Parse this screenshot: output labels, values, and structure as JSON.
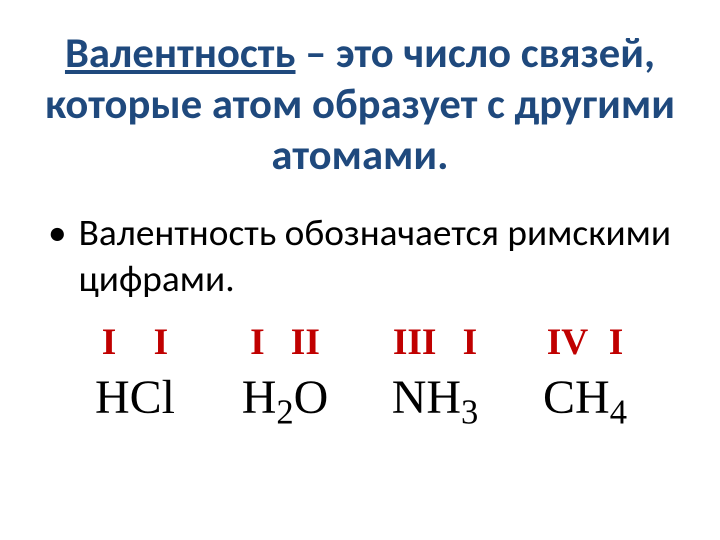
{
  "colors": {
    "title": "#1f497d",
    "valence": "#c00000",
    "body": "#000000",
    "background": "#ffffff"
  },
  "typography": {
    "title_fontsize_pt": 32,
    "body_fontsize_pt": 28,
    "valence_fontsize_pt": 28,
    "formula_fontsize_pt": 36,
    "title_weight": 700,
    "valence_weight": 700,
    "title_font": "Calibri",
    "formula_font": "Times New Roman"
  },
  "title": {
    "term": "Валентность",
    "term_underlined": true,
    "rest": " – это число связей, которые атом образует с другими атомами."
  },
  "bullet": {
    "text": "Валентность обозначается римскими цифрами."
  },
  "examples": [
    {
      "valence_a": "I",
      "valence_b": "I",
      "valence_gap_em": 1.0,
      "formula": [
        {
          "t": "HCl"
        }
      ]
    },
    {
      "valence_a": "I",
      "valence_b": "II",
      "valence_gap_em": 0.7,
      "formula": [
        {
          "t": "H"
        },
        {
          "t": "2",
          "sub": true
        },
        {
          "t": "O"
        }
      ]
    },
    {
      "valence_a": "III",
      "valence_b": "I",
      "valence_gap_em": 0.7,
      "formula": [
        {
          "t": "NH"
        },
        {
          "t": "3",
          "sub": true
        }
      ]
    },
    {
      "valence_a": "IV",
      "valence_b": "I",
      "valence_gap_em": 0.55,
      "formula": [
        {
          "t": "CH"
        },
        {
          "t": "4",
          "sub": true
        }
      ]
    }
  ]
}
